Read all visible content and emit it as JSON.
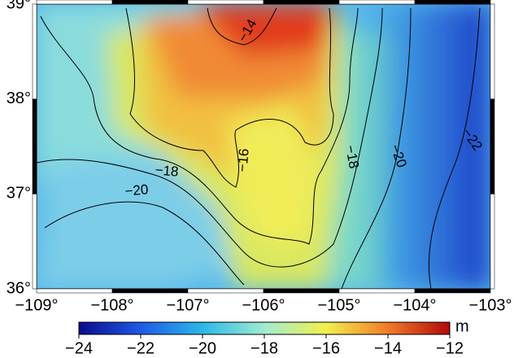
{
  "map": {
    "xlim": [
      -109,
      -103
    ],
    "ylim": [
      36,
      39
    ],
    "xticks": [
      {
        "value": -109,
        "label": "−109°"
      },
      {
        "value": -108,
        "label": "−108°"
      },
      {
        "value": -107,
        "label": "−107°"
      },
      {
        "value": -106,
        "label": "−106°"
      },
      {
        "value": -105,
        "label": "−105°"
      },
      {
        "value": -104,
        "label": "−104°"
      },
      {
        "value": -103,
        "label": "−103°"
      }
    ],
    "yticks": [
      {
        "value": 36,
        "label": "36°"
      },
      {
        "value": 37,
        "label": "37°"
      },
      {
        "value": 38,
        "label": "38°"
      },
      {
        "value": 39,
        "label": "39°"
      }
    ],
    "contour_labels": [
      {
        "value": -14,
        "label": "−14"
      },
      {
        "value": -16,
        "label": "−16"
      },
      {
        "value": -18,
        "label": "−18"
      },
      {
        "value": -18,
        "label": "−18"
      },
      {
        "value": -20,
        "label": "−20"
      },
      {
        "value": -20,
        "label": "−20"
      },
      {
        "value": -22,
        "label": "−22"
      }
    ]
  },
  "colorbar": {
    "unit": "m",
    "clim": [
      -24,
      -12
    ],
    "ticks": [
      {
        "value": -24,
        "label": "−24"
      },
      {
        "value": -22,
        "label": "−22"
      },
      {
        "value": -20,
        "label": "−20"
      },
      {
        "value": -18,
        "label": "−18"
      },
      {
        "value": -16,
        "label": "−16"
      },
      {
        "value": -14,
        "label": "−14"
      },
      {
        "value": -12,
        "label": "−12"
      }
    ],
    "colormap": [
      {
        "value": -24,
        "color": "#0a0a8c"
      },
      {
        "value": -22,
        "color": "#1f5ae6"
      },
      {
        "value": -20,
        "color": "#2cb8e8"
      },
      {
        "value": -18,
        "color": "#a0ecd0"
      },
      {
        "value": -16,
        "color": "#f2f04c"
      },
      {
        "value": -14,
        "color": "#f27a28"
      },
      {
        "value": -12,
        "color": "#b00a0a"
      }
    ]
  }
}
